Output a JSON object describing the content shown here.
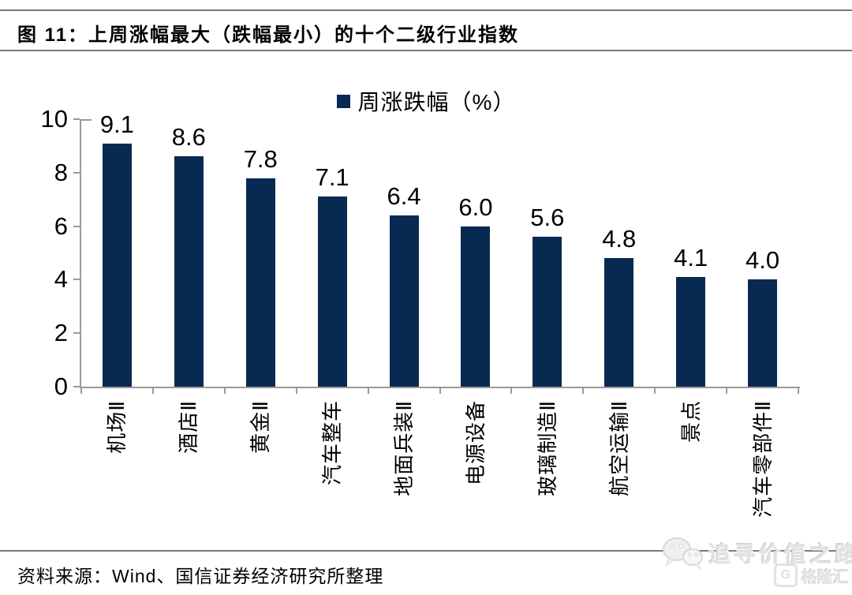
{
  "figure": {
    "title": "图 11：上周涨幅最大（跌幅最小）的十个二级行业指数",
    "source": "资料来源：Wind、国信证券经济研究所整理"
  },
  "legend": {
    "swatch_icon": "legend-square-swatch-icon",
    "label": "周涨跌幅（%）"
  },
  "watermark": {
    "wechat_icon": "wechat-bubbles-icon",
    "text": "追寻价值之路",
    "logo_icon": "gelonghui-g-icon",
    "logo_text": "格隆汇"
  },
  "colors": {
    "bar": "#082a52",
    "axis": "#9a9a9a",
    "rule": "#7a7a7a",
    "watermark": "#e2e2e2",
    "label_text": "#000000"
  },
  "chart_data": {
    "type": "bar",
    "title": "上周涨幅最大（跌幅最小）的十个二级行业指数",
    "series_name": "周涨跌幅（%）",
    "categories": [
      "机场Ⅱ",
      "酒店Ⅱ",
      "黄金Ⅱ",
      "汽车整车",
      "地面兵装Ⅱ",
      "电源设备",
      "玻璃制造Ⅱ",
      "航空运输Ⅱ",
      "景点",
      "汽车零部件Ⅱ"
    ],
    "values": [
      9.1,
      8.6,
      7.8,
      7.1,
      6.4,
      6.0,
      5.6,
      4.8,
      4.1,
      4.0
    ],
    "value_labels": true,
    "xlabel": "",
    "ylabel": "",
    "ylim": [
      0,
      10
    ],
    "yticks": [
      0,
      2,
      4,
      6,
      8,
      10
    ],
    "grid": false,
    "legend_position": "top-center",
    "bar_color": "#082a52",
    "x_tick_label_rotation_deg": 90
  }
}
